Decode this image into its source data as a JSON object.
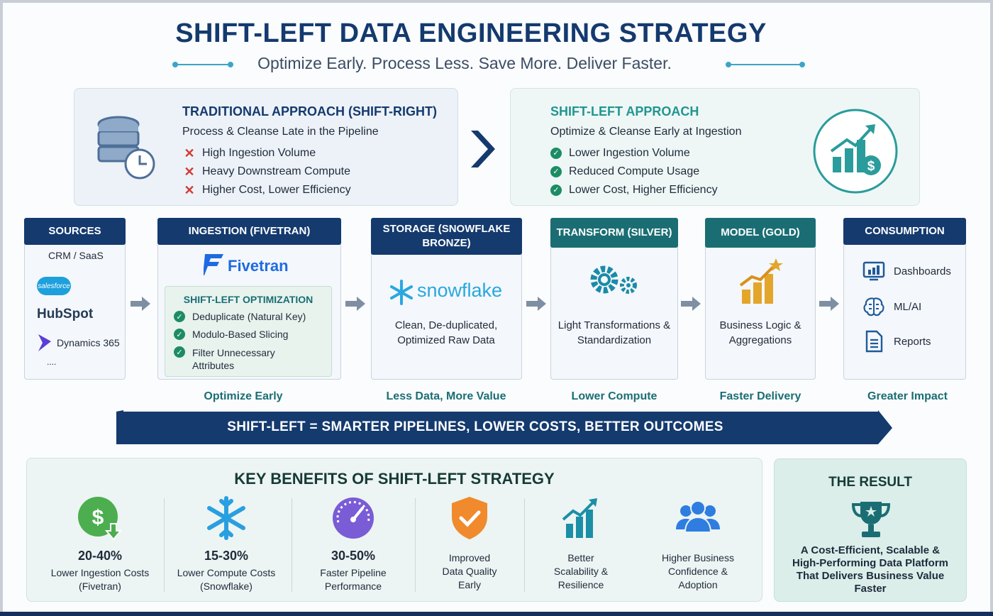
{
  "header": {
    "title": "SHIFT-LEFT DATA ENGINEERING STRATEGY",
    "subtitle": "Optimize Early. Process Less. Save More. Deliver Faster."
  },
  "traditional": {
    "title": "TRADITIONAL APPROACH (SHIFT-RIGHT)",
    "subtitle": "Process & Cleanse Late in the Pipeline",
    "items": [
      "High Ingestion Volume",
      "Heavy Downstream Compute",
      "Higher Cost, Lower Efficiency"
    ]
  },
  "shift_left": {
    "title": "SHIFT-LEFT APPROACH",
    "subtitle": "Optimize & Cleanse Early at Ingestion",
    "items": [
      "Lower Ingestion Volume",
      "Reduced Compute Usage",
      "Lower Cost, Higher Efficiency"
    ]
  },
  "pipeline": {
    "sources": {
      "header": "SOURCES",
      "items": [
        "CRM / SaaS",
        "salesforce",
        "HubSpot",
        "Dynamics 365",
        "...."
      ]
    },
    "ingestion": {
      "header": "INGESTION (FIVETRAN)",
      "logo": "Fivetran",
      "optimization_title": "SHIFT-LEFT OPTIMIZATION",
      "optimizations": [
        "Deduplicate (Natural Key)",
        "Modulo-Based Slicing",
        "Filter Unnecessary Attributes"
      ],
      "caption": "Optimize Early"
    },
    "storage": {
      "header": "STORAGE (SNOWFLAKE BRONZE)",
      "logo": "snowflake",
      "text": "Clean, De-duplicated, Optimized Raw Data",
      "caption": "Less Data, More Value"
    },
    "transform": {
      "header": "TRANSFORM (SILVER)",
      "text": "Light Transformations & Standardization",
      "caption": "Lower Compute"
    },
    "model": {
      "header": "MODEL (GOLD)",
      "text": "Business Logic & Aggregations",
      "caption": "Faster Delivery"
    },
    "consumption": {
      "header": "CONSUMPTION",
      "items": [
        "Dashboards",
        "ML/AI",
        "Reports"
      ],
      "caption": "Greater Impact"
    }
  },
  "band": "SHIFT-LEFT = SMARTER PIPELINES, LOWER COSTS, BETTER OUTCOMES",
  "benefits": {
    "title": "KEY BENEFITS OF SHIFT-LEFT STRATEGY",
    "items": [
      {
        "value": "20-40%",
        "label": "Lower Ingestion Costs",
        "note": "(Fivetran)",
        "icon": "dollar-down-icon"
      },
      {
        "value": "15-30%",
        "label": "Lower Compute Costs",
        "note": "(Snowflake)",
        "icon": "snowflake-icon"
      },
      {
        "value": "30-50%",
        "label": "Faster Pipeline",
        "note": "Performance",
        "icon": "speedometer-icon"
      },
      {
        "value": "",
        "label": "Improved",
        "note": "Data Quality Early",
        "icon": "shield-check-icon"
      },
      {
        "value": "",
        "label": "Better",
        "note": "Scalability & Resilience",
        "icon": "bar-growth-icon"
      },
      {
        "value": "",
        "label": "Higher Business",
        "note": "Confidence & Adoption",
        "icon": "people-icon"
      }
    ]
  },
  "result": {
    "title": "THE RESULT",
    "text": "A Cost-Efficient, Scalable & High-Performing Data Platform That Delivers Business Value Faster"
  },
  "colors": {
    "navy": "#143a6e",
    "teal": "#1a6e73",
    "green": "#1d8c64",
    "red": "#d23b36"
  }
}
